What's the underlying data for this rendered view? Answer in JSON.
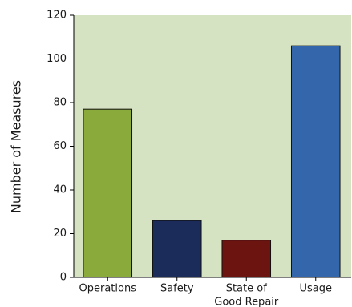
{
  "chart_data": {
    "type": "bar",
    "categories": [
      [
        "Operations"
      ],
      [
        "Safety"
      ],
      [
        "State of",
        "Good Repair"
      ],
      [
        "Usage"
      ]
    ],
    "values": [
      77,
      26,
      17,
      106
    ],
    "bar_colors": [
      "#8aab3c",
      "#1b2b5a",
      "#6b1410",
      "#3366aa"
    ],
    "plot_background": "#d6e3c2",
    "ylabel": "Number of Measures",
    "yticks": [
      "0",
      "20",
      "40",
      "60",
      "80",
      "100",
      "120"
    ],
    "ylim": [
      0,
      120
    ],
    "grid": false
  }
}
